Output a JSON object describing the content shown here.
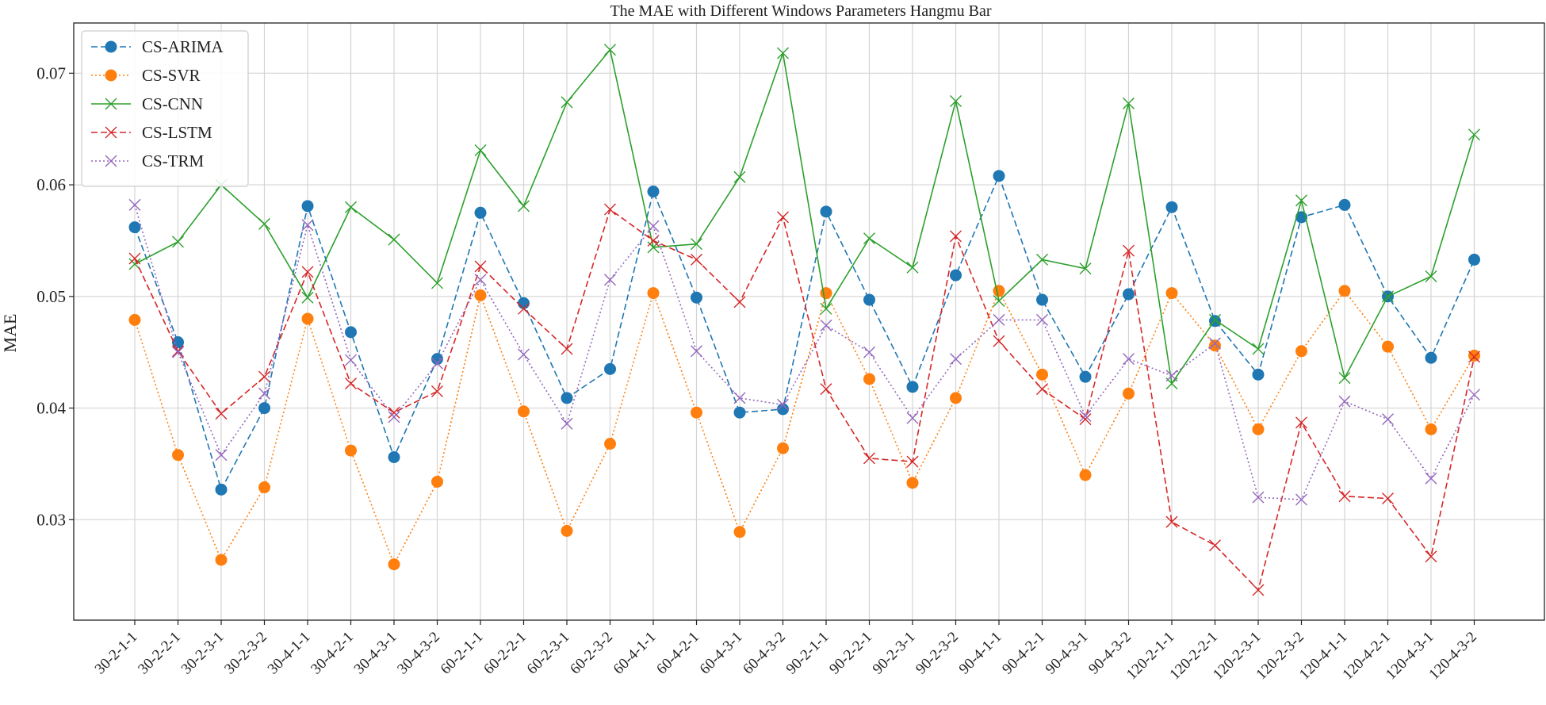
{
  "chart_data": {
    "type": "line",
    "title": "The MAE with Different Windows Parameters Hangmu Bar",
    "xlabel": "",
    "ylabel": "MAE",
    "ylim": [
      0.021,
      0.0745
    ],
    "yticks": [
      0.03,
      0.04,
      0.05,
      0.06,
      0.07
    ],
    "ytick_labels": [
      "0.03",
      "0.04",
      "0.05",
      "0.06",
      "0.07"
    ],
    "grid": true,
    "legend_position": "top-left",
    "categories": [
      "30-2-1-1",
      "30-2-2-1",
      "30-2-3-1",
      "30-2-3-2",
      "30-4-1-1",
      "30-4-2-1",
      "30-4-3-1",
      "30-4-3-2",
      "60-2-1-1",
      "60-2-2-1",
      "60-2-3-1",
      "60-2-3-2",
      "60-4-1-1",
      "60-4-2-1",
      "60-4-3-1",
      "60-4-3-2",
      "90-2-1-1",
      "90-2-2-1",
      "90-2-3-1",
      "90-2-3-2",
      "90-4-1-1",
      "90-4-2-1",
      "90-4-3-1",
      "90-4-3-2",
      "120-2-1-1",
      "120-2-2-1",
      "120-2-3-1",
      "120-2-3-2",
      "120-4-1-1",
      "120-4-2-1",
      "120-4-3-1",
      "120-4-3-2"
    ],
    "series": [
      {
        "name": "CS-ARIMA",
        "color": "#1f77b4",
        "dash": "dashed",
        "marker": "circle",
        "values": [
          0.0562,
          0.0459,
          0.0327,
          0.04,
          0.0581,
          0.0468,
          0.0356,
          0.0444,
          0.0575,
          0.0494,
          0.0409,
          0.0435,
          0.0594,
          0.0499,
          0.0396,
          0.0399,
          0.0576,
          0.0497,
          0.0419,
          0.0519,
          0.0608,
          0.0497,
          0.0428,
          0.0502,
          0.058,
          0.0478,
          0.043,
          0.0571,
          0.0582,
          0.05,
          0.0445,
          0.0533
        ]
      },
      {
        "name": "CS-SVR",
        "color": "#ff7f0e",
        "dash": "dotted",
        "marker": "circle",
        "values": [
          0.0479,
          0.0358,
          0.0264,
          0.0329,
          0.048,
          0.0362,
          0.026,
          0.0334,
          0.0501,
          0.0397,
          0.029,
          0.0368,
          0.0503,
          0.0396,
          0.0289,
          0.0364,
          0.0503,
          0.0426,
          0.0333,
          0.0409,
          0.0505,
          0.043,
          0.034,
          0.0413,
          0.0503,
          0.0456,
          0.0381,
          0.0451,
          0.0505,
          0.0455,
          0.0381,
          0.0447
        ]
      },
      {
        "name": "CS-CNN",
        "color": "#2ca02c",
        "dash": "solid",
        "marker": "x",
        "values": [
          0.0529,
          0.0549,
          0.06,
          0.0565,
          0.0499,
          0.058,
          0.0551,
          0.0512,
          0.0631,
          0.0581,
          0.0674,
          0.0721,
          0.0544,
          0.0547,
          0.0607,
          0.0718,
          0.0489,
          0.0552,
          0.0526,
          0.0675,
          0.0496,
          0.0533,
          0.0525,
          0.0673,
          0.0422,
          0.0479,
          0.0453,
          0.0586,
          0.0427,
          0.05,
          0.0518,
          0.0645
        ]
      },
      {
        "name": "CS-LSTM",
        "color": "#d62728",
        "dash": "dashed",
        "marker": "x",
        "values": [
          0.0534,
          0.0451,
          0.0395,
          0.0428,
          0.0522,
          0.0422,
          0.0396,
          0.0415,
          0.0527,
          0.0489,
          0.0453,
          0.0578,
          0.055,
          0.0533,
          0.0495,
          0.0571,
          0.0417,
          0.0355,
          0.0352,
          0.0554,
          0.046,
          0.0417,
          0.039,
          0.0541,
          0.0298,
          0.0277,
          0.0237,
          0.0387,
          0.0321,
          0.0319,
          0.0267,
          0.0446
        ]
      },
      {
        "name": "CS-TRM",
        "color": "#9467bd",
        "dash": "dotted",
        "marker": "x",
        "values": [
          0.0582,
          0.045,
          0.0358,
          0.0413,
          0.0564,
          0.0443,
          0.0392,
          0.044,
          0.0515,
          0.0448,
          0.0386,
          0.0515,
          0.0563,
          0.0451,
          0.0409,
          0.0403,
          0.0474,
          0.045,
          0.0391,
          0.0444,
          0.0479,
          0.0479,
          0.0393,
          0.0444,
          0.0429,
          0.0458,
          0.032,
          0.0318,
          0.0406,
          0.039,
          0.0337,
          0.0412
        ]
      }
    ]
  }
}
